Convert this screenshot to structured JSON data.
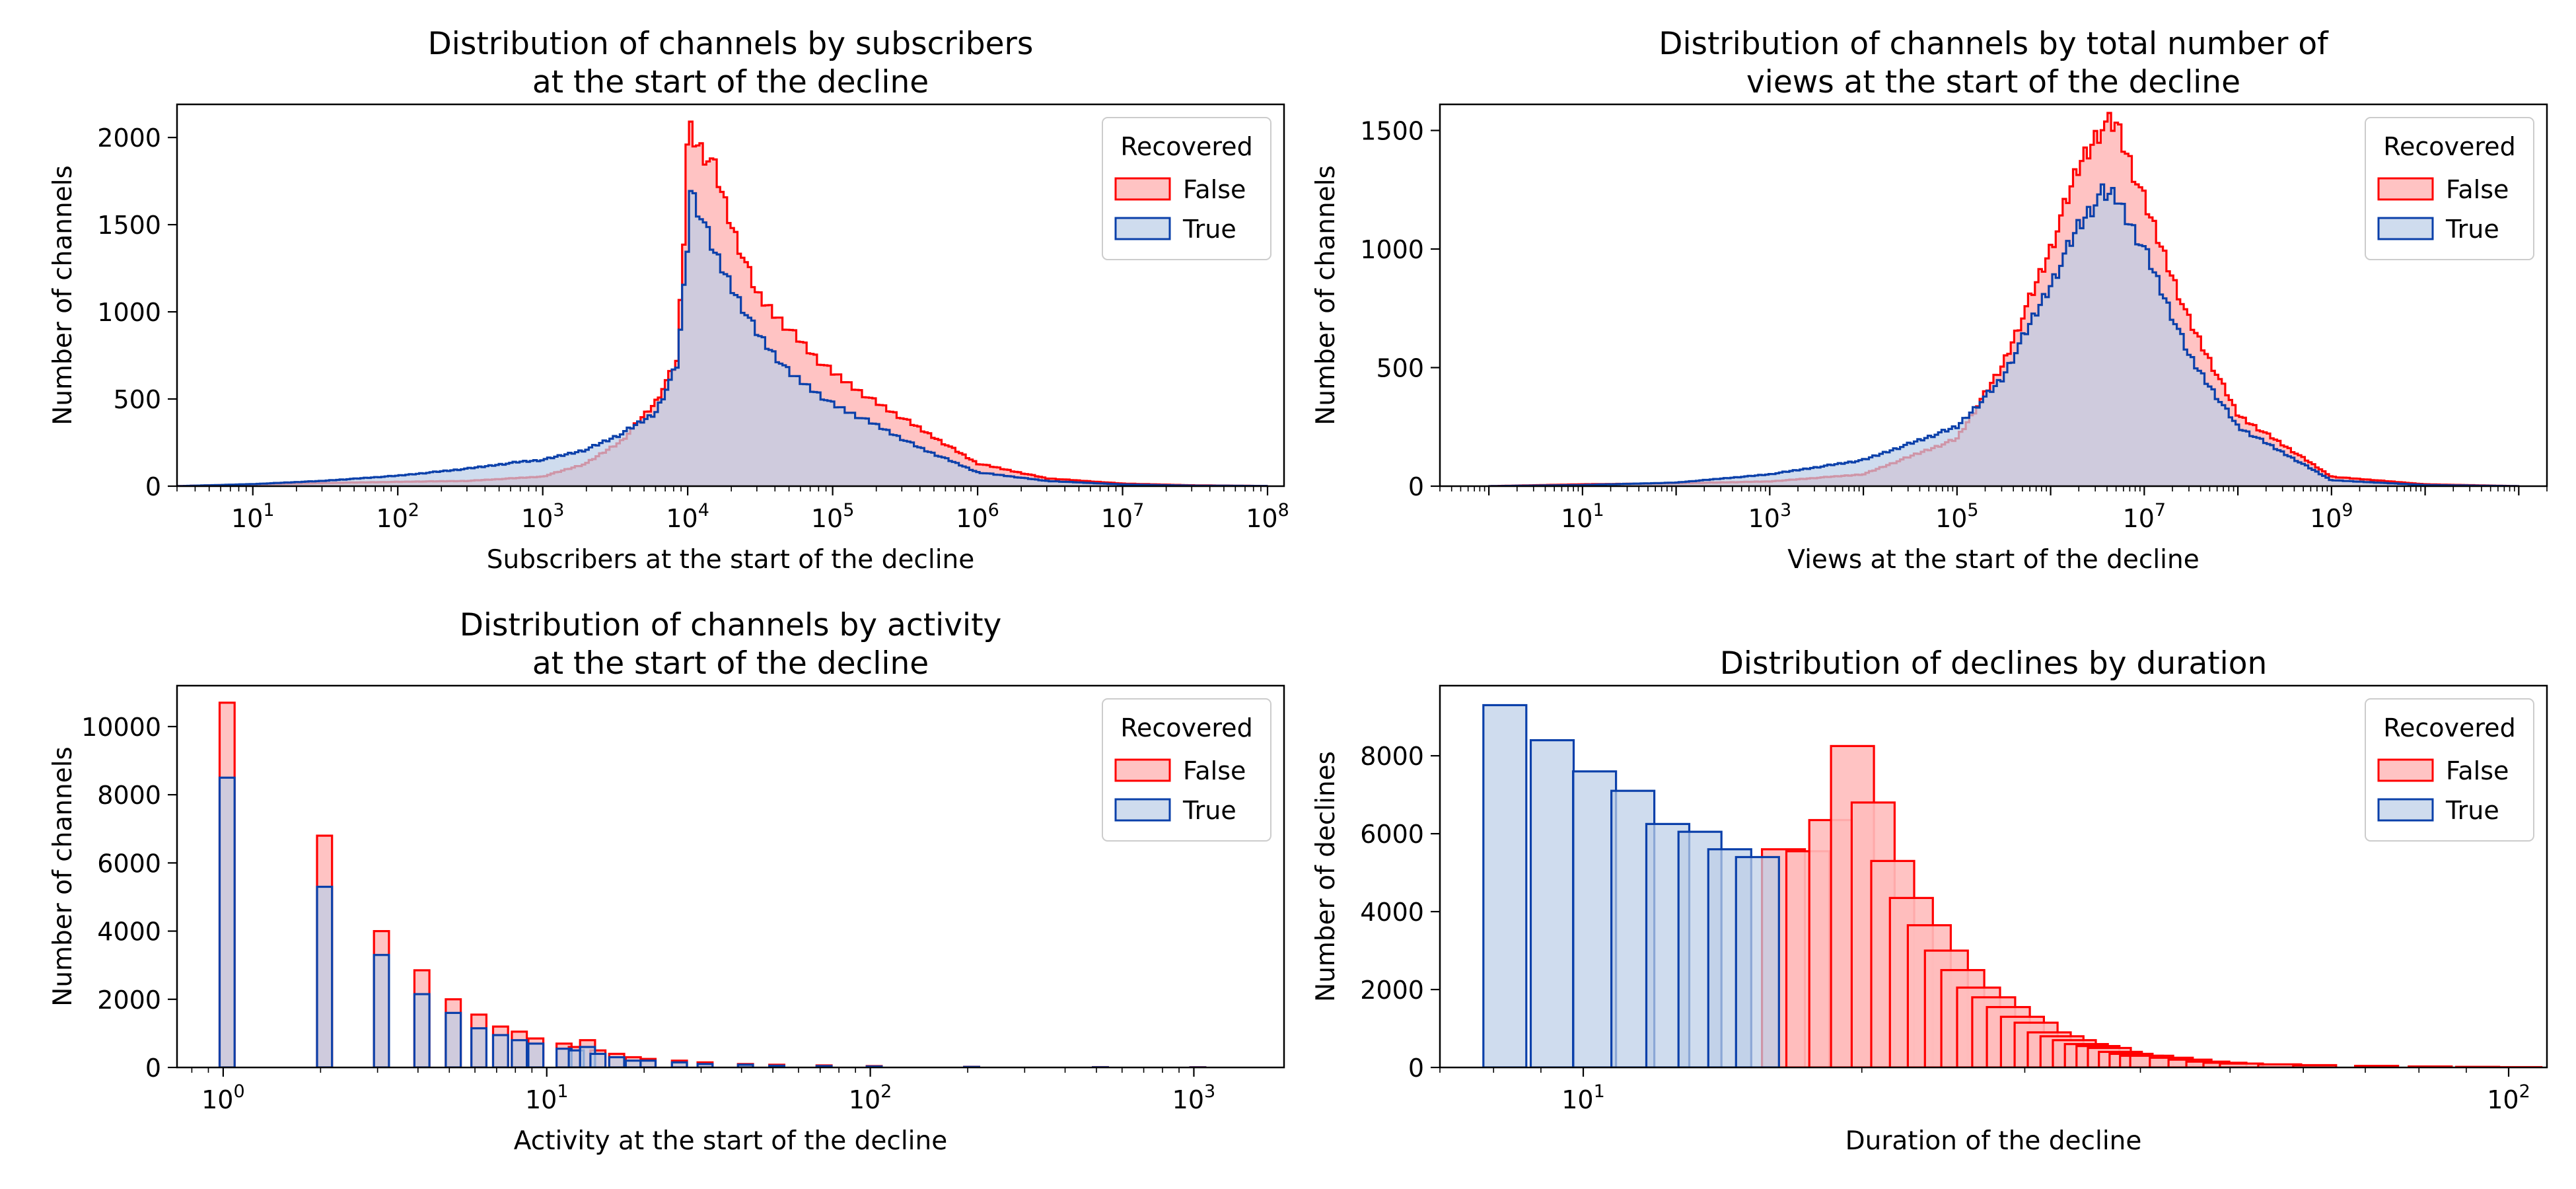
{
  "legend": {
    "title": "Recovered",
    "entries": [
      "False",
      "True"
    ]
  },
  "colors": {
    "false_edge": "#ff0000",
    "false_fill": "#ffbdbd",
    "true_edge": "#0b40aa",
    "true_fill": "#bccfe8",
    "overlap_fill": "#cfa2b2"
  },
  "chart_data": [
    {
      "id": "subscribers",
      "type": "histogram",
      "title": "Distribution of channels by subscribers\nat the start of the decline",
      "xlabel": "Subscribers at the start of the decline",
      "ylabel": "Number of channels",
      "x_scale": "log",
      "xlim": [
        3,
        130000000
      ],
      "ylim": [
        0,
        2190
      ],
      "yticks": [
        0,
        500,
        1000,
        1500,
        2000
      ],
      "xtick_exponents": [
        1,
        2,
        3,
        4,
        5,
        6,
        7,
        8
      ],
      "legend_position": "top-right",
      "series": [
        {
          "name": "False",
          "curve": [
            [
              3,
              0
            ],
            [
              10,
              10
            ],
            [
              30,
              18
            ],
            [
              100,
              25
            ],
            [
              300,
              30
            ],
            [
              1000,
              55
            ],
            [
              2000,
              130
            ],
            [
              3500,
              260
            ],
            [
              6000,
              480
            ],
            [
              8500,
              720
            ],
            [
              9800,
              1700
            ],
            [
              10000,
              2080
            ],
            [
              12000,
              1950
            ],
            [
              15000,
              1850
            ],
            [
              20000,
              1500
            ],
            [
              30000,
              1100
            ],
            [
              50000,
              900
            ],
            [
              80000,
              720
            ],
            [
              100000,
              650
            ],
            [
              200000,
              480
            ],
            [
              400000,
              330
            ],
            [
              1000000,
              130
            ],
            [
              3000000,
              45
            ],
            [
              10000000,
              15
            ],
            [
              30000000,
              5
            ],
            [
              100000000,
              1
            ]
          ]
        },
        {
          "name": "True",
          "curve": [
            [
              3,
              0
            ],
            [
              10,
              12
            ],
            [
              30,
              30
            ],
            [
              100,
              60
            ],
            [
              300,
              100
            ],
            [
              700,
              140
            ],
            [
              1000,
              150
            ],
            [
              2000,
              210
            ],
            [
              3500,
              300
            ],
            [
              6000,
              420
            ],
            [
              8500,
              700
            ],
            [
              9800,
              1300
            ],
            [
              10500,
              1700
            ],
            [
              13000,
              1500
            ],
            [
              15000,
              1350
            ],
            [
              20000,
              1150
            ],
            [
              30000,
              880
            ],
            [
              50000,
              650
            ],
            [
              80000,
              530
            ],
            [
              100000,
              470
            ],
            [
              200000,
              350
            ],
            [
              400000,
              220
            ],
            [
              1000000,
              80
            ],
            [
              3000000,
              30
            ],
            [
              10000000,
              10
            ],
            [
              30000000,
              3
            ],
            [
              100000000,
              1
            ]
          ]
        }
      ]
    },
    {
      "id": "views",
      "type": "histogram",
      "title": "Distribution of channels by total number of\nviews at the start of the decline",
      "xlabel": "Views at the start of the decline",
      "ylabel": "Number of channels",
      "x_scale": "log",
      "xlim": [
        0.3,
        200000000000
      ],
      "ylim": [
        0,
        1610
      ],
      "yticks": [
        0,
        500,
        1000,
        1500
      ],
      "xtick_exponents": [
        1,
        3,
        5,
        7,
        9
      ],
      "legend_position": "top-right",
      "series": [
        {
          "name": "False",
          "curve": [
            [
              1,
              0
            ],
            [
              10,
              8
            ],
            [
              100,
              12
            ],
            [
              1000,
              20
            ],
            [
              10000,
              50
            ],
            [
              100000,
              200
            ],
            [
              300000,
              500
            ],
            [
              1000000,
              1000
            ],
            [
              2000000,
              1350
            ],
            [
              3500000,
              1520
            ],
            [
              5000000,
              1530
            ],
            [
              10000000,
              1200
            ],
            [
              30000000,
              700
            ],
            [
              100000000,
              300
            ],
            [
              1000000000,
              40
            ],
            [
              10000000000,
              8
            ],
            [
              100000000000,
              0
            ]
          ]
        },
        {
          "name": "True",
          "curve": [
            [
              1,
              0
            ],
            [
              10,
              5
            ],
            [
              100,
              15
            ],
            [
              1000,
              50
            ],
            [
              10000,
              110
            ],
            [
              100000,
              250
            ],
            [
              300000,
              450
            ],
            [
              1000000,
              850
            ],
            [
              2000000,
              1100
            ],
            [
              3500000,
              1230
            ],
            [
              5000000,
              1220
            ],
            [
              10000000,
              1000
            ],
            [
              30000000,
              550
            ],
            [
              100000000,
              250
            ],
            [
              1000000000,
              25
            ],
            [
              10000000000,
              5
            ],
            [
              100000000000,
              0
            ]
          ]
        }
      ]
    },
    {
      "id": "activity",
      "type": "histogram",
      "title": "Distribution of channels by activity\nat the start of the decline",
      "xlabel": "Activity at the start of the decline",
      "ylabel": "Number of channels",
      "x_scale": "log",
      "xlim": [
        0.72,
        1900
      ],
      "ylim": [
        0,
        11200
      ],
      "yticks": [
        0,
        2000,
        4000,
        6000,
        8000,
        10000
      ],
      "xtick_exponents": [
        0,
        1,
        2,
        3
      ],
      "legend_position": "top-right",
      "series": [
        {
          "name": "False",
          "bars": [
            [
              1,
              10700
            ],
            [
              2,
              6800
            ],
            [
              3,
              4000
            ],
            [
              4,
              2850
            ],
            [
              5,
              2000
            ],
            [
              6,
              1550
            ],
            [
              7,
              1200
            ],
            [
              8,
              1050
            ],
            [
              9,
              850
            ],
            [
              11,
              700
            ],
            [
              12,
              600
            ],
            [
              13,
              800
            ],
            [
              14,
              500
            ],
            [
              16,
              400
            ],
            [
              18,
              300
            ],
            [
              20,
              250
            ],
            [
              25,
              200
            ],
            [
              30,
              150
            ],
            [
              40,
              100
            ],
            [
              50,
              80
            ],
            [
              70,
              60
            ],
            [
              100,
              40
            ],
            [
              200,
              20
            ],
            [
              500,
              10
            ],
            [
              1000,
              5
            ]
          ]
        },
        {
          "name": "True",
          "bars": [
            [
              1,
              8500
            ],
            [
              2,
              5300
            ],
            [
              3,
              3300
            ],
            [
              4,
              2150
            ],
            [
              5,
              1600
            ],
            [
              6,
              1150
            ],
            [
              7,
              950
            ],
            [
              8,
              800
            ],
            [
              9,
              700
            ],
            [
              11,
              550
            ],
            [
              12,
              500
            ],
            [
              13,
              600
            ],
            [
              14,
              400
            ],
            [
              16,
              300
            ],
            [
              18,
              200
            ],
            [
              20,
              200
            ],
            [
              25,
              150
            ],
            [
              30,
              100
            ],
            [
              40,
              80
            ],
            [
              50,
              50
            ],
            [
              70,
              40
            ],
            [
              100,
              30
            ],
            [
              200,
              15
            ],
            [
              500,
              5
            ],
            [
              1000,
              2
            ]
          ]
        }
      ]
    },
    {
      "id": "duration",
      "type": "histogram",
      "title": "Distribution of declines by duration",
      "xlabel": "Duration of the decline",
      "ylabel": "Number of declines",
      "x_scale": "log",
      "xlim": [
        7,
        110
      ],
      "ylim": [
        0,
        9800
      ],
      "yticks": [
        0,
        2000,
        4000,
        6000,
        8000
      ],
      "xtick_exponents": [
        1,
        2
      ],
      "legend_position": "top-right",
      "series": [
        {
          "name": "True",
          "bars": [
            [
              8,
              9300
            ],
            [
              9,
              8400
            ],
            [
              10,
              7600
            ],
            [
              11,
              7100
            ],
            [
              12,
              6250
            ],
            [
              13,
              6050
            ],
            [
              14,
              5600
            ],
            [
              15,
              5400
            ]
          ]
        },
        {
          "name": "False",
          "bars": [
            [
              16,
              5600
            ],
            [
              17,
              5550
            ],
            [
              18,
              6350
            ],
            [
              19,
              8250
            ],
            [
              20,
              6800
            ],
            [
              21,
              5300
            ],
            [
              22,
              4350
            ],
            [
              23,
              3650
            ],
            [
              24,
              3000
            ],
            [
              25,
              2500
            ],
            [
              26,
              2050
            ],
            [
              27,
              1800
            ],
            [
              28,
              1550
            ],
            [
              29,
              1300
            ],
            [
              30,
              1150
            ],
            [
              31,
              900
            ],
            [
              32,
              800
            ],
            [
              33,
              700
            ],
            [
              34,
              600
            ],
            [
              35,
              550
            ],
            [
              36,
              500
            ],
            [
              37,
              400
            ],
            [
              38,
              350
            ],
            [
              39,
              300
            ],
            [
              40,
              300
            ],
            [
              42,
              250
            ],
            [
              44,
              200
            ],
            [
              46,
              150
            ],
            [
              48,
              120
            ],
            [
              50,
              100
            ],
            [
              55,
              80
            ],
            [
              60,
              60
            ],
            [
              70,
              40
            ],
            [
              80,
              25
            ],
            [
              90,
              15
            ],
            [
              100,
              8
            ]
          ]
        }
      ]
    }
  ]
}
